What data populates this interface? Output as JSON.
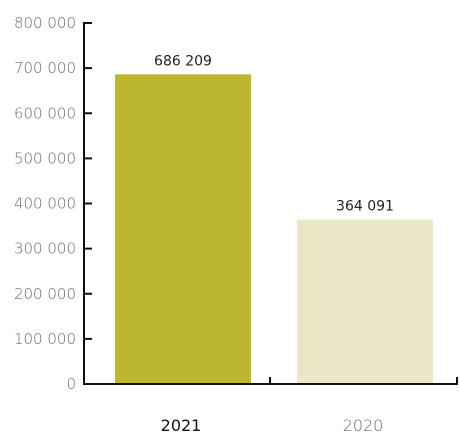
{
  "chart_data": {
    "type": "bar",
    "categories": [
      "2021",
      "2020"
    ],
    "values": [
      686209,
      364091
    ],
    "value_labels": [
      "686 209",
      "364 091"
    ],
    "category_emphasis": [
      "bold",
      "normal"
    ],
    "bar_colors": [
      "#bdb730",
      "#eae6c6"
    ],
    "title": "",
    "xlabel": "",
    "ylabel": "",
    "ylim": [
      0,
      800000
    ],
    "yticks": [
      0,
      100000,
      200000,
      300000,
      400000,
      500000,
      600000,
      700000,
      800000
    ],
    "ytick_labels": [
      "0",
      "100 000",
      "200 000",
      "300 000",
      "400 000",
      "500 000",
      "600 000",
      "700 000",
      "800 000"
    ],
    "grid": false,
    "legend": "none"
  },
  "colors": {
    "axis": "#111111",
    "tick_text": "#6b6b6b",
    "category_text_bold": "#111111",
    "category_text_normal": "#6b6b6b"
  }
}
